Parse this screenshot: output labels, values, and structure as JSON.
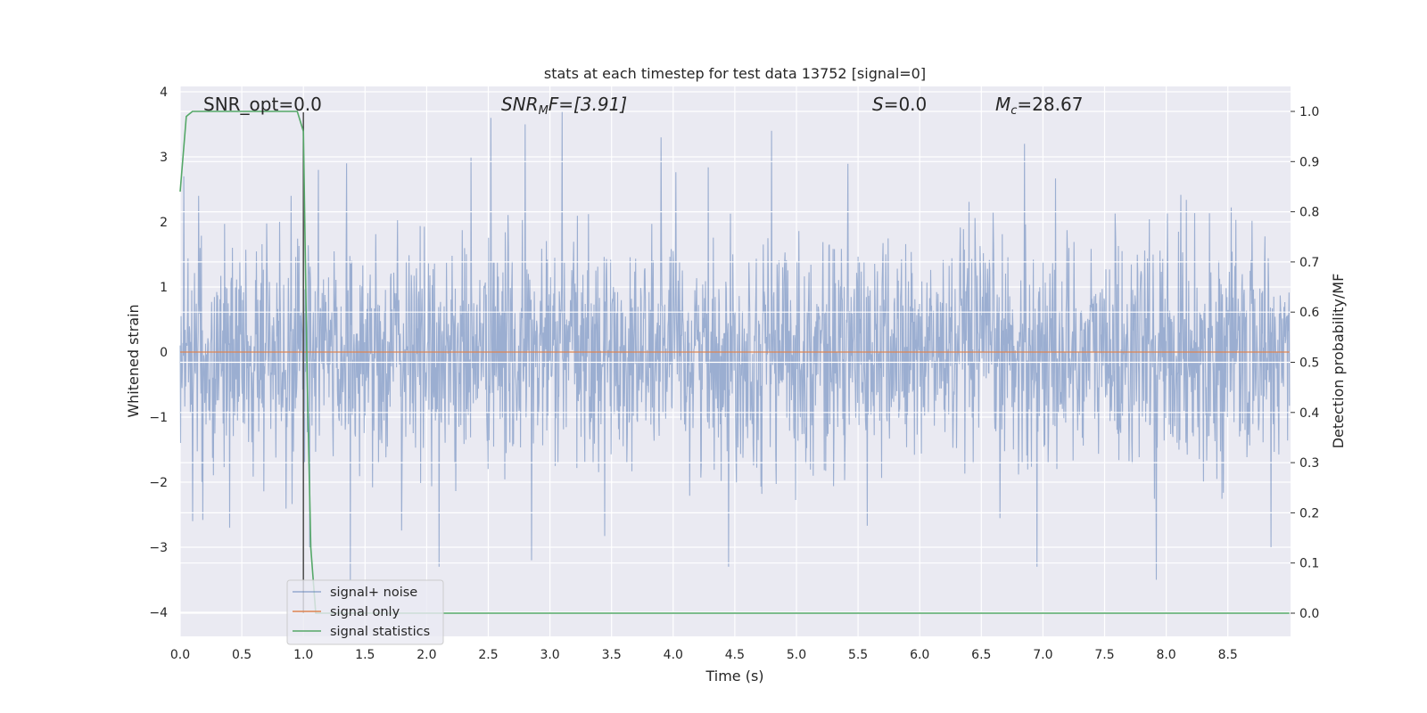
{
  "chart_data": {
    "type": "line",
    "title": "stats at each timestep for test data 13752 [signal=0]",
    "xlabel": "Time (s)",
    "ylabel_left": "Whitened strain",
    "ylabel_right": "Detection probability/MF",
    "xlim": [
      0.0,
      9.0
    ],
    "ylim_left": [
      -4.35,
      4.15
    ],
    "ylim_right": [
      -0.045,
      1.045
    ],
    "x_ticks": [
      "0.0",
      "0.5",
      "1.0",
      "1.5",
      "2.0",
      "2.5",
      "3.0",
      "3.5",
      "4.0",
      "4.5",
      "5.0",
      "5.5",
      "6.0",
      "6.5",
      "7.0",
      "7.5",
      "8.0",
      "8.5"
    ],
    "y_ticks_left": [
      "4",
      "3",
      "2",
      "1",
      "0",
      "−1",
      "−2",
      "−3",
      "−4"
    ],
    "y_ticks_right": [
      "1.0",
      "0.9",
      "0.8",
      "0.7",
      "0.6",
      "0.5",
      "0.4",
      "0.3",
      "0.2",
      "0.1",
      "0.0"
    ],
    "grid": true,
    "legend_position": "lower-left",
    "annotations": {
      "snr_opt": "SNR_opt=0.0",
      "snr_mf_prefix": "SNR",
      "snr_mf_sub": "M",
      "snr_mf_suffix": "F=[3.91]",
      "s_var": "S",
      "s_value": "=0.0",
      "mc_var": "M",
      "mc_sub": "c",
      "mc_value": "=28.67"
    },
    "vertical_marker_x": 1.0,
    "series": [
      {
        "name": "signal+ noise",
        "color": "#4c72b0",
        "style": "dense noise, approx. unit variance",
        "envelope_peaks": [
          [
            0.03,
            2.7
          ],
          [
            0.15,
            2.4
          ],
          [
            0.4,
            2.5
          ],
          [
            0.9,
            2.4
          ],
          [
            1.12,
            2.8
          ],
          [
            1.35,
            2.9
          ],
          [
            2.52,
            3.6
          ],
          [
            2.8,
            3.5
          ],
          [
            3.1,
            3.7
          ],
          [
            3.9,
            3.3
          ],
          [
            4.8,
            3.4
          ],
          [
            6.85,
            3.2
          ],
          [
            0.1,
            -2.6
          ],
          [
            0.4,
            -2.7
          ],
          [
            1.05,
            -3.0
          ],
          [
            1.38,
            -3.5
          ],
          [
            2.1,
            -3.3
          ],
          [
            2.85,
            -3.2
          ],
          [
            4.45,
            -3.3
          ],
          [
            6.95,
            -3.3
          ],
          [
            7.92,
            -3.5
          ],
          [
            8.85,
            -3.0
          ]
        ]
      },
      {
        "name": "signal only",
        "color": "#dd8452",
        "x": [
          0.0,
          9.0
        ],
        "y": [
          0.0,
          0.0
        ]
      },
      {
        "name": "signal statistics",
        "color": "#55a868",
        "axis": "right",
        "x": [
          0.0,
          0.05,
          0.1,
          0.2,
          0.5,
          0.8,
          0.95,
          1.0,
          1.03,
          1.06,
          1.1,
          2.0,
          9.0
        ],
        "y": [
          0.84,
          0.99,
          1.0,
          1.0,
          1.0,
          1.0,
          1.0,
          0.96,
          0.48,
          0.13,
          0.0,
          0.0,
          0.0
        ]
      }
    ]
  }
}
